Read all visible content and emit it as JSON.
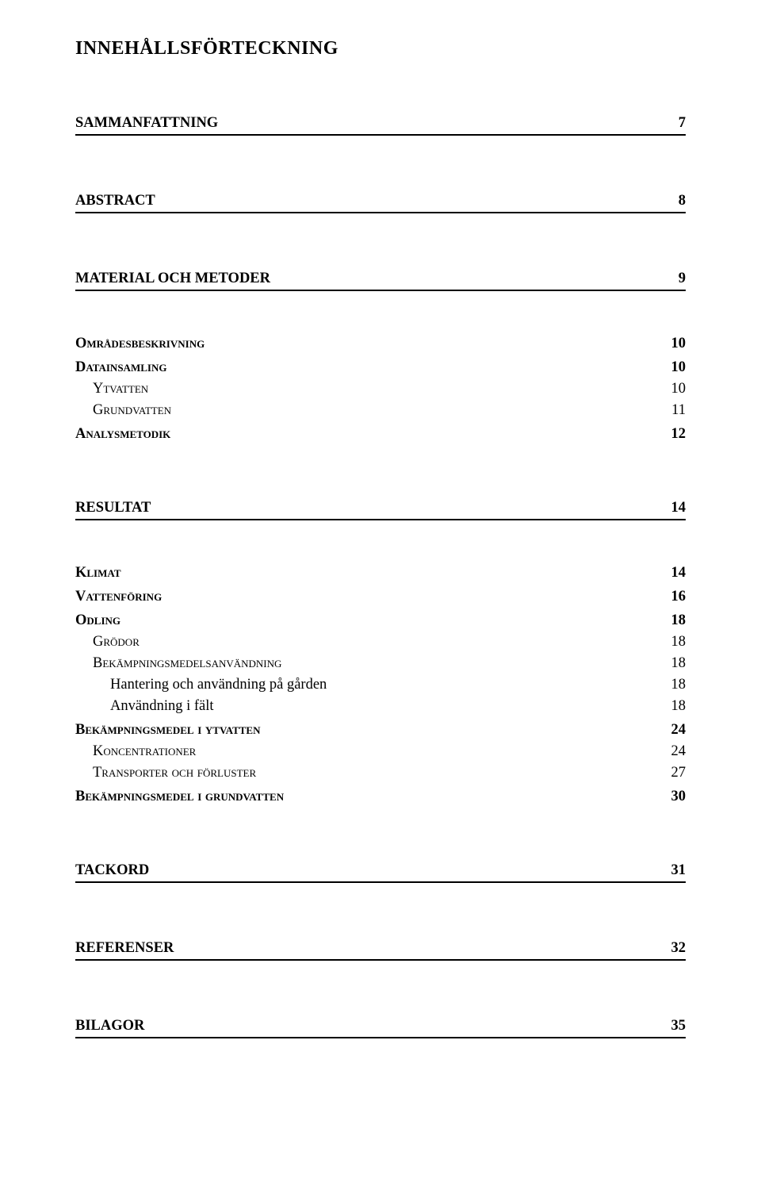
{
  "title": "INNEHÅLLSFÖRTECKNING",
  "sections": [
    {
      "label": "SAMMANFATTNING",
      "page": "7"
    },
    {
      "label": "ABSTRACT",
      "page": "8"
    },
    {
      "label": "MATERIAL OCH METODER",
      "page": "9"
    }
  ],
  "material_sub": [
    {
      "label": "Områdesbeskrivning",
      "page": "10"
    },
    {
      "label": "Datainsamling",
      "page": "10"
    },
    {
      "label": "Ytvatten",
      "page": "10"
    },
    {
      "label": "Grundvatten",
      "page": "11"
    },
    {
      "label": "Analysmetodik",
      "page": "12"
    }
  ],
  "resultat": {
    "label": "RESULTAT",
    "page": "14"
  },
  "resultat_sub": {
    "klimat": {
      "label": "Klimat",
      "page": "14"
    },
    "vattenforing": {
      "label": "Vattenföring",
      "page": "16"
    },
    "odling": {
      "label": "Odling",
      "page": "18"
    },
    "grodor": {
      "label": "Grödor",
      "page": "18"
    },
    "bekamp_anv": {
      "label": "Bekämpningsmedelsanvändning",
      "page": "18"
    },
    "hantering": {
      "label": "Hantering och användning på gården",
      "page": "18"
    },
    "anv_falt": {
      "label": "Användning i fält",
      "page": "18"
    },
    "bekamp_yt": {
      "label": "Bekämpningsmedel i ytvatten",
      "page": "24"
    },
    "koncentrationer": {
      "label": "Koncentrationer",
      "page": "24"
    },
    "transporter": {
      "label": "Transporter och förluster",
      "page": "27"
    },
    "bekamp_grund": {
      "label": "Bekämpningsmedel i grundvatten",
      "page": "30"
    }
  },
  "tackord": {
    "label": "TACKORD",
    "page": "31"
  },
  "referenser": {
    "label": "REFERENSER",
    "page": "32"
  },
  "bilagor": {
    "label": "BILAGOR",
    "page": "35"
  }
}
